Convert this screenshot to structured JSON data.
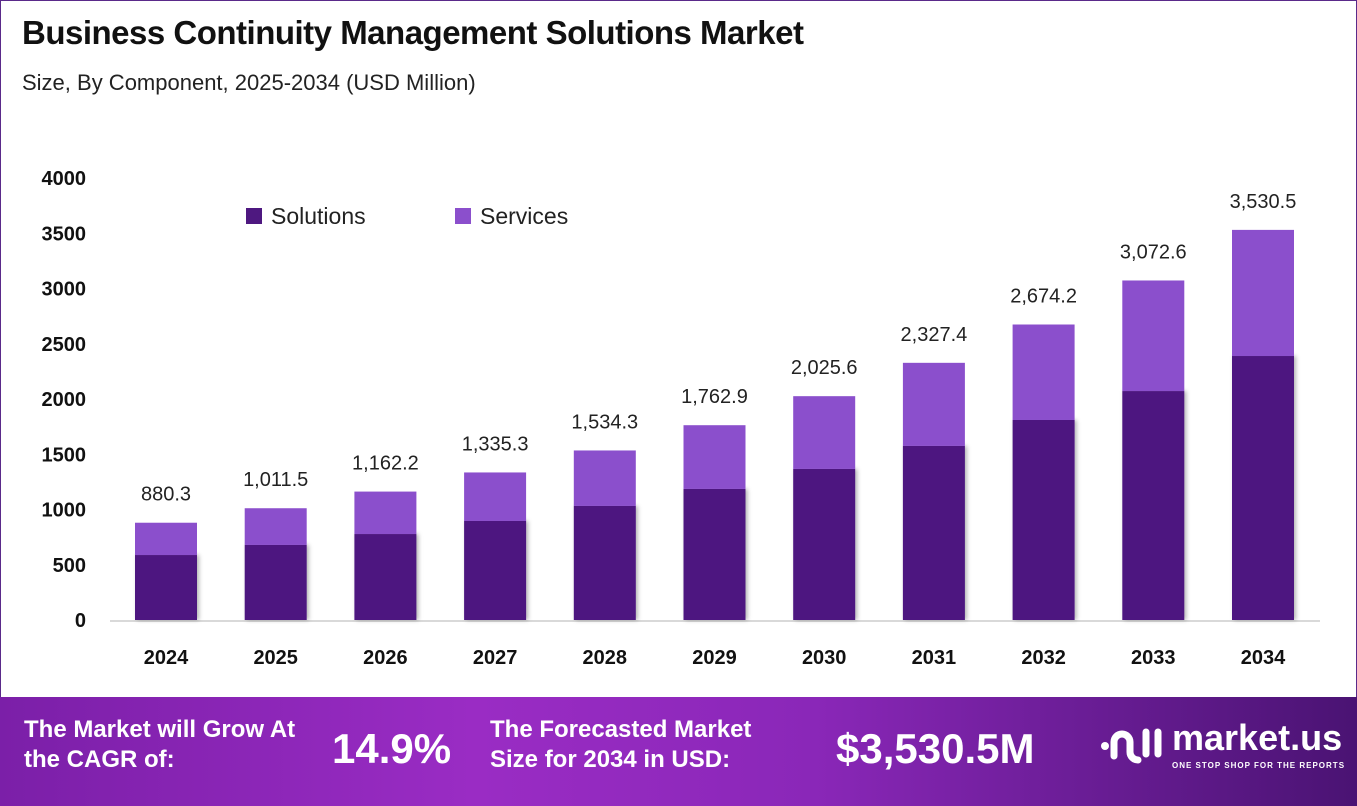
{
  "title": "Business Continuity Management Solutions Market",
  "subtitle": "Size, By Component, 2025-2034 (USD Million)",
  "chart_data": {
    "type": "bar",
    "stacked": true,
    "categories": [
      "2024",
      "2025",
      "2026",
      "2027",
      "2028",
      "2029",
      "2030",
      "2031",
      "2032",
      "2033",
      "2034"
    ],
    "series": [
      {
        "name": "Solutions",
        "color": "#4e1880",
        "values": [
          588,
          679,
          778,
          896,
          1032,
          1186,
          1367,
          1575,
          1810,
          2072,
          2389
        ]
      },
      {
        "name": "Services",
        "color": "#8b4fcc",
        "values": [
          292.3,
          332.5,
          384.2,
          439.3,
          502.3,
          576.9,
          658.6,
          752.4,
          864.2,
          1000.6,
          1141.5
        ]
      }
    ],
    "total_labels": [
      "880.3",
      "1,011.5",
      "1,162.2",
      "1,335.3",
      "1,534.3",
      "1,762.9",
      "2,025.6",
      "2,327.4",
      "2,674.2",
      "3,072.6",
      "3,530.5"
    ],
    "totals": [
      880.3,
      1011.5,
      1162.2,
      1335.3,
      1534.3,
      1762.9,
      2025.6,
      2327.4,
      2674.2,
      3072.6,
      3530.5
    ],
    "yticks": [
      0,
      500,
      1000,
      1500,
      2000,
      2500,
      3000,
      3500,
      4000
    ],
    "ylim": [
      0,
      4000
    ],
    "grid": false,
    "legend_position": "top-left"
  },
  "footer": {
    "cagr_label": "The Market will Grow At the CAGR of:",
    "cagr_value": "14.9%",
    "forecast_label": "The Forecasted Market Size for 2034 in USD:",
    "forecast_value": "$3,530.5M",
    "logo_name": "market.us",
    "logo_tagline": "ONE STOP SHOP FOR THE REPORTS"
  }
}
